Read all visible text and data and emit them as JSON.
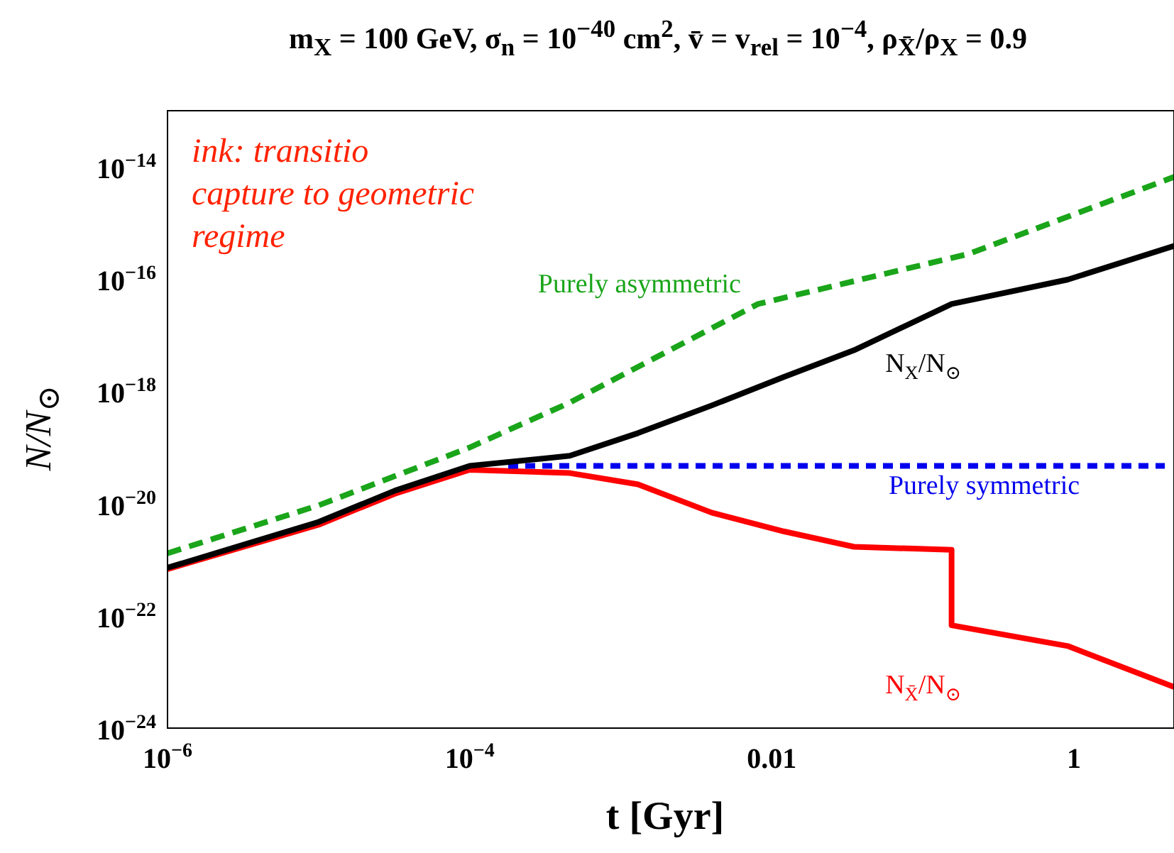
{
  "chart_data": {
    "type": "line",
    "title": "m$_{X}$ = 100 GeV, σ$_{n}$ = 10$^{−40}$ cm$^{2}$, v̄ = v$_{rel}$ = 10$^{−4}$, ρ$_{X̄}$/ρ$_{X}$ = 0.9",
    "xlabel": "t [Gyr]",
    "ylabel": "N/N$_{⊙}$",
    "log": "xy",
    "grid": false,
    "legend": false,
    "marker": "none",
    "xlim": [
      1e-06,
      4.6
    ],
    "ylim": [
      1e-24,
      1e-13
    ],
    "xticks": [
      {
        "value": 1e-06,
        "label": "10$^{−6}$"
      },
      {
        "value": 0.0001,
        "label": "10$^{−4}$"
      },
      0.01,
      1
    ],
    "yticks": [
      {
        "value": 1e-24,
        "label": "10$^{−24}$"
      },
      {
        "value": 1e-22,
        "label": "10$^{−22}$"
      },
      {
        "value": 1e-20,
        "label": "10$^{−20}$"
      },
      {
        "value": 1e-18,
        "label": "10$^{−18}$"
      },
      {
        "value": 1e-16,
        "label": "10$^{−16}$"
      },
      {
        "value": 1e-14,
        "label": "10$^{−14}$"
      }
    ],
    "annotations": [
      "ink: transitio",
      "capture to geometric",
      "regime"
    ],
    "series": [
      {
        "name": "Purely asymmetric",
        "color": "#1aa51a",
        "line_style": "dashed",
        "x": [
          1e-06,
          1e-05,
          0.0001,
          0.00046,
          0.0081,
          0.2,
          4.6
        ],
        "values": [
          1.3e-21,
          9.3e-21,
          1e-19,
          6.3e-19,
          3.6e-17,
          2.8e-16,
          6.6e-15
        ]
      },
      {
        "name": "N$_{X}$/N$_{⊙}$",
        "color": "#000000",
        "line_style": "solid",
        "x": [
          1e-06,
          1e-05,
          3.2e-05,
          0.0001,
          0.00046,
          0.0013,
          0.004,
          0.012,
          0.035,
          0.155,
          0.91,
          4.6
        ],
        "values": [
          7.2e-22,
          4.7e-21,
          1.7e-20,
          4.7e-20,
          7.1e-20,
          1.8e-19,
          5.6e-19,
          1.8e-18,
          5.4e-18,
          3.6e-17,
          9.8e-17,
          3.9e-16
        ]
      },
      {
        "name": "Purely symmetric",
        "color": "#0000ee",
        "line_style": "dotted",
        "x": [
          0.00018,
          4.0
        ],
        "values": [
          4.7e-20,
          4.7e-20
        ]
      },
      {
        "name": "N$_{X̄}$/N$_{⊙}$",
        "color": "#ff0000",
        "line_style": "solid",
        "x": [
          1e-06,
          1e-05,
          3.2e-05,
          0.0001,
          0.00046,
          0.0013,
          0.004,
          0.012,
          0.035,
          0.155,
          0.155,
          0.91,
          4.6
        ],
        "values": [
          6.8e-22,
          4.2e-21,
          1.5e-20,
          4e-20,
          3.5e-20,
          2.2e-20,
          6.9e-21,
          3.2e-21,
          1.7e-21,
          1.5e-21,
          6.8e-23,
          2.9e-23,
          5.4e-24
        ]
      }
    ]
  }
}
